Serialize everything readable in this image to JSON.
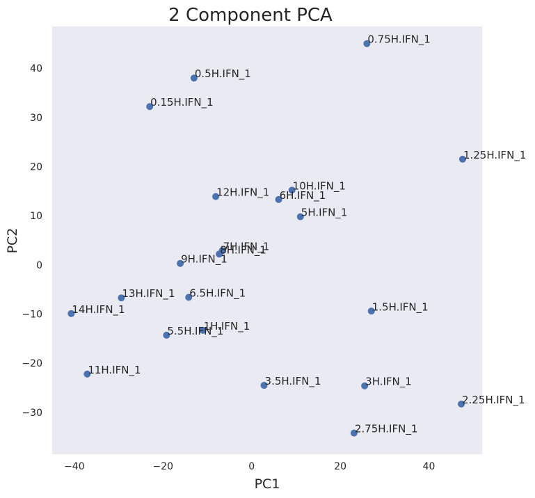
{
  "chart_data": {
    "type": "scatter",
    "title": "2 Component PCA",
    "xlabel": "PC1",
    "ylabel": "PC2",
    "xlim": [
      -45,
      52
    ],
    "ylim": [
      -38.5,
      48.5
    ],
    "xticks": [
      -40,
      -20,
      0,
      20,
      40
    ],
    "yticks": [
      -30,
      -20,
      -10,
      0,
      10,
      20,
      30,
      40
    ],
    "grid": false,
    "point_color": "#4c72b0",
    "background_color": "#eaeaf2",
    "points": [
      {
        "label": "0.75H.IFN_1",
        "x": 26.0,
        "y": 45.0
      },
      {
        "label": "0.5H.IFN_1",
        "x": -13.0,
        "y": 38.0
      },
      {
        "label": "0.15H.IFN_1",
        "x": -23.0,
        "y": 32.2
      },
      {
        "label": "1.25H.IFN_1",
        "x": 47.6,
        "y": 21.5
      },
      {
        "label": "10H.IFN_1",
        "x": 9.1,
        "y": 15.2
      },
      {
        "label": "12H.IFN_1",
        "x": -8.1,
        "y": 13.9
      },
      {
        "label": "6H.IFN_1",
        "x": 6.1,
        "y": 13.3
      },
      {
        "label": "5H.IFN_1",
        "x": 11.0,
        "y": 9.8
      },
      {
        "label": "7H.IFN_1",
        "x": -6.6,
        "y": 2.9
      },
      {
        "label": "8H.IFN_1",
        "x": -7.3,
        "y": 2.2
      },
      {
        "label": "9H.IFN_1",
        "x": -16.1,
        "y": 0.3
      },
      {
        "label": "13H.IFN_1",
        "x": -29.4,
        "y": -6.7
      },
      {
        "label": "6.5H.IFN_1",
        "x": -14.2,
        "y": -6.6
      },
      {
        "label": "14H.IFN_1",
        "x": -40.7,
        "y": -9.9
      },
      {
        "label": "1.5H.IFN_1",
        "x": 27.0,
        "y": -9.4
      },
      {
        "label": "1H.IFN_1",
        "x": -11.0,
        "y": -13.3
      },
      {
        "label": "5.5H.IFN_1",
        "x": -19.2,
        "y": -14.3
      },
      {
        "label": "11H.IFN_1",
        "x": -37.1,
        "y": -22.2
      },
      {
        "label": "3.5H.IFN_1",
        "x": 2.8,
        "y": -24.5
      },
      {
        "label": "3H.IFN_1",
        "x": 25.5,
        "y": -24.6
      },
      {
        "label": "2.25H.IFN_1",
        "x": 47.3,
        "y": -28.3
      },
      {
        "label": "2.75H.IFN_1",
        "x": 23.1,
        "y": -34.2
      }
    ]
  }
}
